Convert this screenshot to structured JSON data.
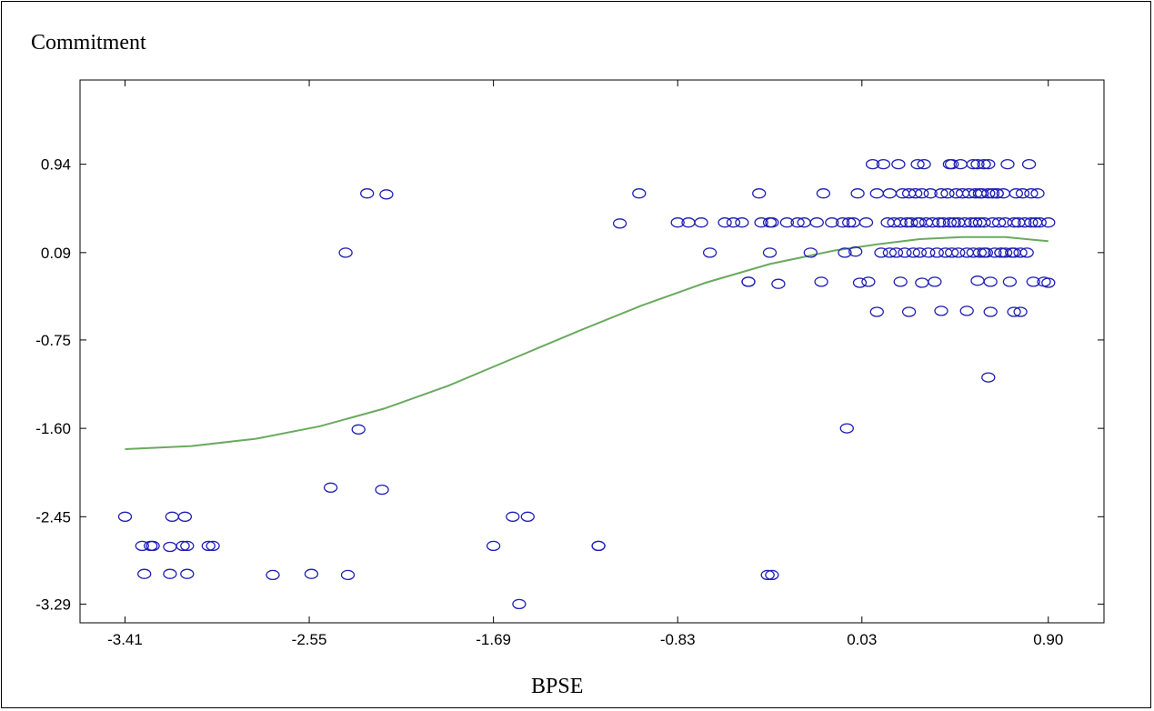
{
  "chart_data": {
    "type": "scatter",
    "title": "",
    "ylabel": "Commitment",
    "xlabel": "BPSE",
    "xlim": [
      -3.62,
      1.16
    ],
    "ylim": [
      -3.47,
      1.75
    ],
    "x_ticks": [
      -3.41,
      -2.55,
      -1.69,
      -0.83,
      0.03,
      0.9
    ],
    "x_tick_labels": [
      "-3.41",
      "-2.55",
      "-1.69",
      "-0.83",
      "0.03",
      "0.90"
    ],
    "y_ticks": [
      0.94,
      0.09,
      -0.75,
      -1.6,
      -2.45,
      -3.29
    ],
    "y_tick_labels": [
      "0.94",
      "0.09",
      "-0.75",
      "-1.60",
      "-2.45",
      "-3.29"
    ],
    "grid": false,
    "marker_color": "#1f1fb4",
    "line_color": "#6aaa5f",
    "series": [
      {
        "type": "scatter",
        "points": [
          [
            -3.41,
            -2.45
          ],
          [
            -3.33,
            -2.73
          ],
          [
            -3.29,
            -2.73
          ],
          [
            -3.28,
            -2.73
          ],
          [
            -3.32,
            -3.0
          ],
          [
            -3.19,
            -2.45
          ],
          [
            -3.2,
            -2.74
          ],
          [
            -3.14,
            -2.73
          ],
          [
            -3.12,
            -2.73
          ],
          [
            -3.13,
            -2.45
          ],
          [
            -3.2,
            -3.0
          ],
          [
            -3.12,
            -3.0
          ],
          [
            -3.02,
            -2.73
          ],
          [
            -3.0,
            -2.73
          ],
          [
            -2.72,
            -3.01
          ],
          [
            -2.54,
            -3.0
          ],
          [
            -2.45,
            -2.17
          ],
          [
            -2.37,
            -3.01
          ],
          [
            -2.38,
            0.09
          ],
          [
            -2.32,
            -1.61
          ],
          [
            -2.28,
            0.66
          ],
          [
            -2.19,
            0.65
          ],
          [
            -2.21,
            -2.19
          ],
          [
            -1.69,
            -2.73
          ],
          [
            -1.6,
            -2.45
          ],
          [
            -1.53,
            -2.45
          ],
          [
            -1.57,
            -3.29
          ],
          [
            -1.2,
            -2.73
          ],
          [
            -1.2,
            -2.73
          ],
          [
            -1.1,
            0.37
          ],
          [
            -1.01,
            0.66
          ],
          [
            -0.83,
            0.38
          ],
          [
            -0.78,
            0.38
          ],
          [
            -0.72,
            0.38
          ],
          [
            -0.68,
            0.09
          ],
          [
            -0.61,
            0.38
          ],
          [
            -0.57,
            0.38
          ],
          [
            -0.53,
            0.38
          ],
          [
            -0.5,
            -0.19
          ],
          [
            -0.5,
            -0.19
          ],
          [
            -0.45,
            0.66
          ],
          [
            -0.44,
            0.38
          ],
          [
            -0.4,
            0.09
          ],
          [
            -0.4,
            0.38
          ],
          [
            -0.39,
            0.38
          ],
          [
            -0.41,
            -3.01
          ],
          [
            -0.39,
            -3.01
          ],
          [
            -0.36,
            -0.21
          ],
          [
            -0.32,
            0.38
          ],
          [
            -0.27,
            0.38
          ],
          [
            -0.24,
            0.38
          ],
          [
            -0.21,
            0.09
          ],
          [
            -0.18,
            0.38
          ],
          [
            -0.15,
            0.66
          ],
          [
            -0.16,
            -0.19
          ],
          [
            -0.11,
            0.38
          ],
          [
            -0.06,
            0.38
          ],
          [
            -0.05,
            0.09
          ],
          [
            -0.04,
            -1.6
          ],
          [
            -0.03,
            0.38
          ],
          [
            -0.01,
            0.38
          ],
          [
            0.0,
            0.1
          ],
          [
            0.01,
            0.66
          ],
          [
            0.02,
            -0.2
          ],
          [
            0.05,
            0.38
          ],
          [
            0.06,
            -0.19
          ],
          [
            0.08,
            0.94
          ],
          [
            0.1,
            0.66
          ],
          [
            0.1,
            -0.48
          ],
          [
            0.12,
            0.09
          ],
          [
            0.13,
            0.94
          ],
          [
            0.15,
            0.38
          ],
          [
            0.16,
            0.66
          ],
          [
            0.16,
            0.09
          ],
          [
            0.18,
            0.38
          ],
          [
            0.19,
            0.09
          ],
          [
            0.2,
            0.94
          ],
          [
            0.21,
            -0.19
          ],
          [
            0.21,
            0.38
          ],
          [
            0.22,
            0.66
          ],
          [
            0.23,
            0.09
          ],
          [
            0.24,
            0.38
          ],
          [
            0.25,
            0.66
          ],
          [
            0.25,
            -0.48
          ],
          [
            0.26,
            0.38
          ],
          [
            0.27,
            0.09
          ],
          [
            0.28,
            0.66
          ],
          [
            0.29,
            0.38
          ],
          [
            0.29,
            0.94
          ],
          [
            0.3,
            0.09
          ],
          [
            0.3,
            0.38
          ],
          [
            0.31,
            0.66
          ],
          [
            0.31,
            -0.2
          ],
          [
            0.32,
            0.94
          ],
          [
            0.33,
            0.38
          ],
          [
            0.34,
            0.09
          ],
          [
            0.35,
            0.66
          ],
          [
            0.36,
            0.38
          ],
          [
            0.37,
            -0.19
          ],
          [
            0.38,
            0.09
          ],
          [
            0.39,
            0.38
          ],
          [
            0.4,
            0.66
          ],
          [
            0.4,
            -0.47
          ],
          [
            0.41,
            0.38
          ],
          [
            0.42,
            0.09
          ],
          [
            0.43,
            0.66
          ],
          [
            0.44,
            0.38
          ],
          [
            0.44,
            0.94
          ],
          [
            0.45,
            0.09
          ],
          [
            0.46,
            0.38
          ],
          [
            0.47,
            0.66
          ],
          [
            0.48,
            0.38
          ],
          [
            0.48,
            0.09
          ],
          [
            0.49,
            0.94
          ],
          [
            0.5,
            0.66
          ],
          [
            0.51,
            0.38
          ],
          [
            0.52,
            0.09
          ],
          [
            0.53,
            0.66
          ],
          [
            0.54,
            0.38
          ],
          [
            0.55,
            0.09
          ],
          [
            0.56,
            0.66
          ],
          [
            0.56,
            0.38
          ],
          [
            0.57,
            -0.18
          ],
          [
            0.58,
            0.38
          ],
          [
            0.58,
            0.09
          ],
          [
            0.59,
            0.66
          ],
          [
            0.6,
            0.38
          ],
          [
            0.61,
            0.09
          ],
          [
            0.62,
            0.66
          ],
          [
            0.62,
            0.94
          ],
          [
            0.63,
            -0.19
          ],
          [
            0.63,
            -0.48
          ],
          [
            0.64,
            0.38
          ],
          [
            0.65,
            0.09
          ],
          [
            0.66,
            0.66
          ],
          [
            0.67,
            0.38
          ],
          [
            0.68,
            0.09
          ],
          [
            0.69,
            0.66
          ],
          [
            0.7,
            0.38
          ],
          [
            0.71,
            0.94
          ],
          [
            0.72,
            -0.19
          ],
          [
            0.73,
            0.09
          ],
          [
            0.74,
            -0.48
          ],
          [
            0.74,
            0.38
          ],
          [
            0.75,
            0.66
          ],
          [
            0.76,
            0.38
          ],
          [
            0.77,
            0.09
          ],
          [
            0.78,
            0.66
          ],
          [
            0.79,
            0.38
          ],
          [
            0.8,
            0.09
          ],
          [
            0.81,
            0.94
          ],
          [
            0.82,
            0.66
          ],
          [
            0.82,
            0.38
          ],
          [
            0.83,
            -0.19
          ],
          [
            0.84,
            0.38
          ],
          [
            0.85,
            0.66
          ],
          [
            0.86,
            0.38
          ],
          [
            0.88,
            -0.19
          ],
          [
            0.9,
            0.38
          ],
          [
            0.9,
            -0.2
          ],
          [
            0.62,
            -1.11
          ],
          [
            0.77,
            -0.48
          ],
          [
            0.52,
            -0.47
          ],
          [
            0.68,
            0.09
          ],
          [
            0.7,
            0.09
          ],
          [
            0.74,
            0.09
          ],
          [
            0.6,
            0.09
          ],
          [
            0.66,
            0.66
          ],
          [
            0.64,
            0.66
          ],
          [
            0.58,
            0.66
          ],
          [
            0.55,
            0.94
          ],
          [
            0.57,
            0.94
          ],
          [
            0.6,
            0.94
          ],
          [
            0.45,
            0.94
          ]
        ]
      },
      {
        "type": "line",
        "points": [
          [
            -3.41,
            -1.8
          ],
          [
            -3.1,
            -1.77
          ],
          [
            -2.8,
            -1.7
          ],
          [
            -2.5,
            -1.58
          ],
          [
            -2.2,
            -1.41
          ],
          [
            -1.9,
            -1.19
          ],
          [
            -1.6,
            -0.93
          ],
          [
            -1.3,
            -0.67
          ],
          [
            -1.0,
            -0.42
          ],
          [
            -0.7,
            -0.2
          ],
          [
            -0.4,
            -0.02
          ],
          [
            -0.1,
            0.11
          ],
          [
            0.1,
            0.17
          ],
          [
            0.3,
            0.22
          ],
          [
            0.5,
            0.24
          ],
          [
            0.7,
            0.24
          ],
          [
            0.9,
            0.2
          ]
        ]
      }
    ]
  }
}
